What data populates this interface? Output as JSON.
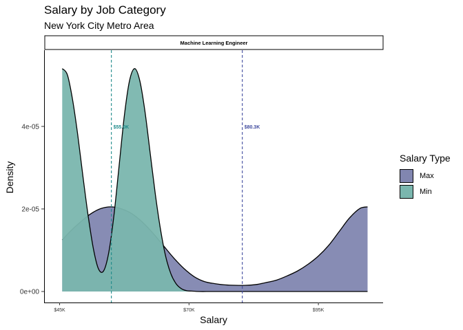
{
  "chart_data": {
    "type": "area",
    "title": "Salary by Job Category",
    "subtitle": "New York City Metro Area",
    "facet": "Machine Learning Engineer",
    "xlabel": "Salary",
    "ylabel": "Density",
    "xlim": [
      45000,
      105000
    ],
    "ylim": [
      0,
      5.4e-05
    ],
    "x_ticks": [
      {
        "value": 45000,
        "label": "$45K"
      },
      {
        "value": 70000,
        "label": "$70K"
      },
      {
        "value": 95000,
        "label": "$95K"
      }
    ],
    "y_ticks": [
      {
        "value": 0,
        "label": "0e+00"
      },
      {
        "value": 2e-05,
        "label": "2e-05"
      },
      {
        "value": 4e-05,
        "label": "4e-05"
      }
    ],
    "legend": {
      "title": "Salary Type",
      "position": "right"
    },
    "series": [
      {
        "name": "Max",
        "color": "#8186B0",
        "x": [
          45500,
          47000,
          49000,
          51000,
          53000,
          55000,
          57000,
          59000,
          61000,
          63000,
          65000,
          67000,
          69000,
          71000,
          73000,
          75000,
          77000,
          79000,
          81000,
          83000,
          85000,
          87000,
          89000,
          91000,
          93000,
          95000,
          97000,
          99000,
          101000,
          103000,
          104500
        ],
        "y": [
          1.25e-05,
          1.45e-05,
          1.68e-05,
          1.88e-05,
          2.01e-05,
          2.05e-05,
          2e-05,
          1.88e-05,
          1.68e-05,
          1.42e-05,
          1.12e-05,
          8.2e-06,
          5.6e-06,
          3.6e-06,
          2.4e-06,
          1.9e-06,
          1.6e-06,
          1.5e-06,
          1.5e-06,
          1.7e-06,
          2.2e-06,
          2.8e-06,
          3.8e-06,
          5e-06,
          6.6e-06,
          8.6e-06,
          1.12e-05,
          1.45e-05,
          1.78e-05,
          2.01e-05,
          2.05e-05
        ],
        "mean": 80300,
        "mean_label": "$80.3K",
        "line_color": "#3F4A9E"
      },
      {
        "name": "Min",
        "color": "#7AB6AE",
        "x": [
          45500,
          46500,
          47500,
          48500,
          49500,
          50500,
          51500,
          52500,
          53500,
          54500,
          55500,
          56500,
          57500,
          58500,
          59500,
          60500,
          61500,
          62500,
          63500,
          64500,
          65500,
          66500,
          67500,
          68500,
          69500,
          70500,
          72000,
          74000,
          76000,
          78000,
          80000,
          84000,
          90000,
          96000,
          104500
        ],
        "y": [
          5.4e-05,
          5.25e-05,
          4.65e-05,
          3.8e-05,
          2.8e-05,
          1.85e-05,
          1.05e-05,
          5.5e-06,
          5e-06,
          9.5e-06,
          1.85e-05,
          3.05e-05,
          4.25e-05,
          5.1e-05,
          5.4e-05,
          5.1e-05,
          4.35e-05,
          3.35e-05,
          2.35e-05,
          1.5e-05,
          8.5e-06,
          4.3e-06,
          1.9e-06,
          7e-07,
          2e-07,
          1e-07,
          0,
          0,
          0,
          0,
          0,
          0,
          0,
          0,
          0
        ],
        "mean": 55000,
        "mean_label": "$55.0K",
        "line_color": "#1E8A8A"
      }
    ]
  }
}
